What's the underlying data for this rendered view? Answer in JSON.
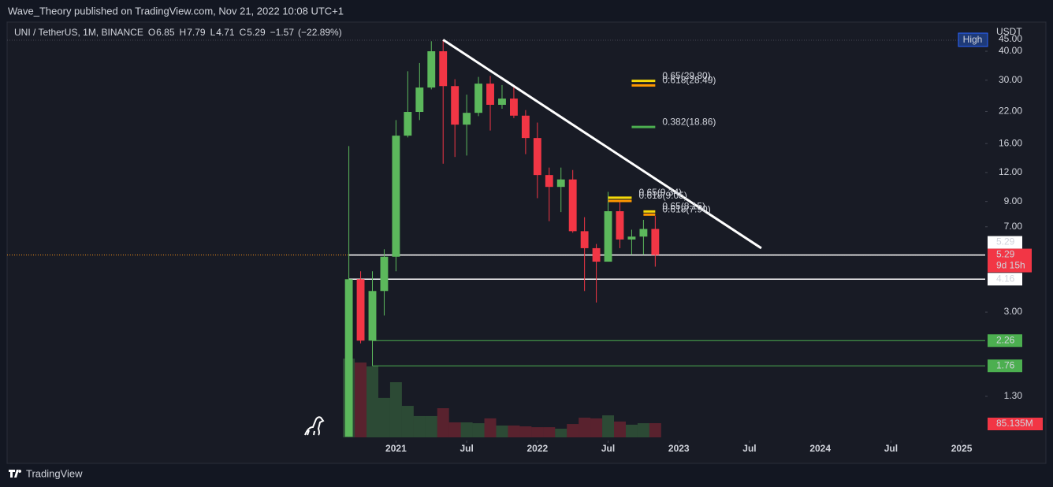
{
  "publisher": "Wave_Theory published on TradingView.com, Nov 21, 2022 10:08 UTC+1",
  "brand": "TradingView",
  "chart_data": {
    "type": "candlestick",
    "title": "UNI / TetherUS, 1M, BINANCE",
    "legend_values": [
      {
        "label": "O",
        "value": 6.85
      },
      {
        "label": "H",
        "value": 7.79
      },
      {
        "label": "L",
        "value": 4.71
      },
      {
        "label": "C",
        "value": 5.29
      }
    ],
    "change": {
      "value": -1.57,
      "label": "−1.57"
    },
    "change_pct": {
      "value": -22.89,
      "label": "(−22.89%)"
    },
    "currency": "USDT",
    "high_badge": "High",
    "log_scale": true,
    "up_color": "#5cb85c",
    "down_color": "#f23645",
    "x": [
      "2020-09",
      "2020-10",
      "2020-11",
      "2020-12",
      "2021-01",
      "2021-02",
      "2021-03",
      "2021-04",
      "2021-05",
      "2021-06",
      "2021-07",
      "2021-08",
      "2021-09",
      "2021-10",
      "2021-11",
      "2021-12",
      "2022-01",
      "2022-02",
      "2022-03",
      "2022-04",
      "2022-05",
      "2022-06",
      "2022-07",
      "2022-08",
      "2022-09",
      "2022-10",
      "2022-11"
    ],
    "open": [
      0.87,
      4.16,
      2.26,
      3.7,
      5.2,
      17.3,
      21.9,
      27.9,
      40,
      28.3,
      19.3,
      21.7,
      29.0,
      23.5,
      25.0,
      21.1,
      16.9,
      11.7,
      10.4,
      11.2,
      6.7,
      5.66,
      4.95,
      8.17,
      6.17,
      6.35,
      6.85
    ],
    "high": [
      15.6,
      4.5,
      4.5,
      5.6,
      20.2,
      32.8,
      35.6,
      44.2,
      44.8,
      30.3,
      26.0,
      31.0,
      31.3,
      28.6,
      28.6,
      22.3,
      19.7,
      12.6,
      12.6,
      12.3,
      7.7,
      5.9,
      9.9,
      9.0,
      6.8,
      7.5,
      7.79
    ],
    "low": [
      0.87,
      2.2,
      1.76,
      2.9,
      4.5,
      17.0,
      20.2,
      27.4,
      13.1,
      14.0,
      14.2,
      21.0,
      18.2,
      22.6,
      20.6,
      14.4,
      9.3,
      7.4,
      8.1,
      6.6,
      3.7,
      3.3,
      4.95,
      5.66,
      5.3,
      5.3,
      4.71
    ],
    "close": [
      4.16,
      2.26,
      3.7,
      5.2,
      17.3,
      21.9,
      27.9,
      40,
      28.3,
      19.3,
      21.7,
      29.0,
      23.5,
      25.0,
      21.1,
      16.9,
      11.7,
      10.4,
      11.2,
      6.7,
      5.66,
      4.95,
      8.17,
      6.17,
      6.35,
      6.85,
      5.29
    ],
    "volume": [
      473,
      449,
      426,
      237,
      331,
      189,
      128,
      128,
      175,
      90,
      90,
      85,
      114,
      71,
      71,
      66,
      61,
      61,
      52,
      80,
      118,
      114,
      132,
      95,
      76,
      85,
      85.135
    ],
    "volume_label": "85.135M",
    "xlim": [
      "2018-04",
      "2025-03"
    ],
    "xticks": [
      {
        "value": "2021-01",
        "label": "2021"
      },
      {
        "value": "2021-07",
        "label": "Jul"
      },
      {
        "value": "2022-01",
        "label": "2022"
      },
      {
        "value": "2022-07",
        "label": "Jul"
      },
      {
        "value": "2023-01",
        "label": "2023"
      },
      {
        "value": "2023-07",
        "label": "Jul"
      },
      {
        "value": "2024-01",
        "label": "2024"
      },
      {
        "value": "2024-07",
        "label": "Jul"
      },
      {
        "value": "2025-01",
        "label": "2025"
      }
    ],
    "ylim": [
      0.865,
      47.9
    ],
    "yticks": [
      {
        "value": 1.3,
        "label": "1.30"
      },
      {
        "value": 3,
        "label": "3.00"
      },
      {
        "value": 7,
        "label": "7.00"
      },
      {
        "value": 9,
        "label": "9.00"
      },
      {
        "value": 12,
        "label": "12.00"
      },
      {
        "value": 16,
        "label": "16.00"
      },
      {
        "value": 22,
        "label": "22.00"
      },
      {
        "value": 30,
        "label": "30.00"
      },
      {
        "value": 40,
        "label": "40.00"
      },
      {
        "value": 45,
        "label": "45.00"
      }
    ],
    "last_price": {
      "value": 5.29,
      "countdown": "9d 15h",
      "color": "#f23645"
    },
    "price_lines": [
      {
        "value": 5.29,
        "color": "#ffffff",
        "from": "2020-09"
      },
      {
        "value": 4.16,
        "color": "#ffffff",
        "from": "2020-09"
      },
      {
        "value": 2.26,
        "color": "#4caf50",
        "from": "2020-11"
      },
      {
        "value": 1.76,
        "color": "#4caf50",
        "from": "2020-11"
      }
    ],
    "fib_levels": [
      {
        "label": "0.65(29.80)",
        "value": 29.8,
        "color": "#f5d90a",
        "x": [
          "2022-09",
          "2022-11"
        ]
      },
      {
        "label": "0.618(28.49)",
        "value": 28.49,
        "color": "#ff9800",
        "x": [
          "2022-09",
          "2022-11"
        ]
      },
      {
        "label": "0.382(18.86)",
        "value": 18.86,
        "color": "#4caf50",
        "x": [
          "2022-09",
          "2022-11"
        ]
      },
      {
        "label": "0.65(9.34)",
        "value": 9.34,
        "color": "#f5d90a",
        "x": [
          "2022-07",
          "2022-09"
        ]
      },
      {
        "label": "0.618(9.05)",
        "value": 9.05,
        "color": "#ff9800",
        "x": [
          "2022-07",
          "2022-09"
        ]
      },
      {
        "label": "0.65(8.15)",
        "value": 8.15,
        "color": "#f5d90a",
        "x": [
          "2022-10",
          "2022-11"
        ]
      },
      {
        "label": "0.618(7.90)",
        "value": 7.9,
        "color": "#ff9800",
        "x": [
          "2022-10",
          "2022-11"
        ]
      }
    ],
    "trendline": {
      "color": "#ffffff",
      "x": [
        "2021-05",
        "2023-08"
      ],
      "y": [
        44.8,
        5.66
      ]
    }
  }
}
